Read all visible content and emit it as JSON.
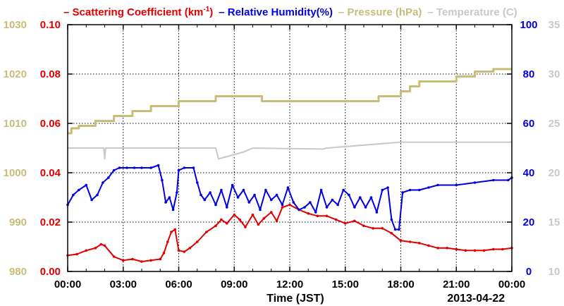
{
  "chart_data": {
    "type": "line",
    "legend": [
      {
        "key": "scattering",
        "dash": "–",
        "text": "Scattering Coefficient (km",
        "sup": "-1",
        "after": ")",
        "color": "#e00000"
      },
      {
        "key": "rh",
        "dash": "–",
        "text": "Relative Humidity(%)",
        "sup": "",
        "after": "",
        "color": "#0000e0"
      },
      {
        "key": "pressure",
        "dash": "–",
        "text": "Pressure (hPa)",
        "sup": "",
        "after": "",
        "color": "#c8bc78"
      },
      {
        "key": "temperature",
        "dash": "–",
        "text": "Temperature (",
        "sup": "",
        "after": "C)",
        "color": "#c8c8c8"
      }
    ],
    "xlabel": "Time (JST)",
    "date_label": "2013-04-22",
    "x_ticks": [
      "00:00",
      "03:00",
      "06:00",
      "09:00",
      "12:00",
      "15:00",
      "18:00",
      "21:00",
      "00:00"
    ],
    "xlim_hours": [
      0,
      24
    ],
    "grid": true,
    "axes": {
      "pressure": {
        "ylim": [
          980,
          1030
        ],
        "ticks": [
          "980",
          "990",
          "1000",
          "1010",
          "1020",
          "1030"
        ],
        "color": "#c8bc78"
      },
      "scattering": {
        "ylim": [
          0,
          0.1
        ],
        "ticks": [
          "0.00",
          "0.02",
          "0.04",
          "0.06",
          "0.08",
          "0.10"
        ],
        "color": "#e00000"
      },
      "rh": {
        "ylim": [
          0,
          100
        ],
        "ticks": [
          "0",
          "20",
          "40",
          "60",
          "80",
          "100"
        ],
        "color": "#0000e0"
      },
      "temperature": {
        "ylim": [
          10,
          35
        ],
        "ticks": [
          "10",
          "15",
          "20",
          "25",
          "30",
          "35"
        ],
        "color": "#c8c8c8"
      }
    },
    "series": [
      {
        "name": "Scattering Coefficient (km-1)",
        "axis": "scattering",
        "color": "#e00000",
        "x": [
          0,
          0.5,
          1.0,
          1.5,
          1.8,
          2.0,
          2.5,
          3.0,
          3.5,
          4.0,
          4.5,
          5.0,
          5.2,
          5.4,
          5.6,
          5.8,
          6.0,
          6.3,
          6.6,
          7.0,
          7.5,
          8.0,
          8.3,
          8.6,
          9.0,
          9.3,
          9.6,
          10.0,
          10.3,
          10.6,
          11.0,
          11.3,
          11.6,
          12.0,
          12.5,
          13.0,
          13.5,
          14.0,
          14.5,
          15.0,
          15.5,
          16.0,
          16.5,
          17.0,
          17.5,
          18.0,
          18.5,
          19.0,
          19.5,
          20.0,
          20.5,
          21.0,
          21.5,
          22.0,
          22.5,
          23.0,
          23.5,
          24.0
        ],
        "y": [
          0.0065,
          0.007,
          0.0085,
          0.0095,
          0.011,
          0.0105,
          0.006,
          0.0045,
          0.005,
          0.004,
          0.0045,
          0.005,
          0.0075,
          0.012,
          0.016,
          0.017,
          0.0085,
          0.008,
          0.0095,
          0.012,
          0.016,
          0.0185,
          0.021,
          0.0195,
          0.023,
          0.021,
          0.018,
          0.023,
          0.019,
          0.0215,
          0.024,
          0.0205,
          0.026,
          0.027,
          0.025,
          0.0235,
          0.0225,
          0.0225,
          0.021,
          0.0195,
          0.0205,
          0.0185,
          0.0175,
          0.0175,
          0.0155,
          0.0125,
          0.012,
          0.0115,
          0.0105,
          0.0095,
          0.0095,
          0.009,
          0.0085,
          0.0085,
          0.0085,
          0.009,
          0.009,
          0.0095
        ]
      },
      {
        "name": "Relative Humidity(%)",
        "axis": "rh",
        "color": "#0000e0",
        "x": [
          0,
          0.3,
          0.6,
          1.0,
          1.3,
          1.6,
          1.9,
          2.2,
          2.5,
          2.8,
          3.2,
          3.6,
          4.0,
          4.5,
          4.9,
          5.1,
          5.3,
          5.5,
          5.7,
          5.9,
          6.0,
          6.3,
          6.8,
          7.0,
          7.2,
          7.4,
          7.7,
          8.0,
          8.3,
          8.6,
          8.9,
          9.2,
          9.5,
          9.8,
          10.1,
          10.4,
          10.7,
          11.0,
          11.3,
          11.6,
          11.9,
          12.2,
          12.5,
          12.8,
          13.1,
          13.4,
          13.7,
          14.0,
          14.3,
          14.6,
          14.9,
          15.2,
          15.5,
          15.8,
          16.1,
          16.4,
          16.7,
          17.0,
          17.3,
          17.5,
          17.7,
          17.9,
          18.1,
          18.5,
          19.0,
          19.5,
          20.0,
          21.0,
          22.0,
          23.0,
          23.8,
          24.0
        ],
        "y": [
          27,
          31,
          33,
          35,
          29,
          31,
          36,
          38,
          41,
          42,
          42,
          42,
          42,
          42,
          43,
          37,
          28,
          30,
          25,
          32,
          41,
          42,
          42,
          36,
          31,
          29,
          32,
          27,
          33,
          26,
          35,
          30,
          33,
          28,
          31,
          25,
          33,
          29,
          31,
          27,
          34,
          28,
          25,
          26,
          28,
          24,
          33,
          26,
          29,
          27,
          33,
          31,
          26,
          30,
          26,
          30,
          24,
          33,
          34,
          21,
          17,
          17,
          32,
          33,
          33,
          34,
          35,
          35,
          36,
          37,
          37,
          38
        ]
      },
      {
        "name": "Pressure (hPa)",
        "axis": "pressure",
        "color": "#c8bc78",
        "step": true,
        "x": [
          0,
          0.2,
          0.6,
          1.5,
          2.5,
          3.5,
          4.5,
          6.0,
          8.0,
          10.5,
          14.0,
          16.8,
          18.0,
          18.5,
          19.0,
          20.0,
          21.0,
          22.0,
          23.0,
          24.0
        ],
        "y": [
          1008,
          1009,
          1009.5,
          1010.5,
          1011.5,
          1012.5,
          1013.5,
          1014.5,
          1015.5,
          1014.5,
          1014.5,
          1015.5,
          1016.5,
          1017.5,
          1018.5,
          1018.5,
          1019.5,
          1020.5,
          1021,
          1021
        ]
      },
      {
        "name": "Temperature (C)",
        "axis": "temperature",
        "color": "#c8c8c8",
        "x": [
          0,
          1.95,
          2.0,
          2.05,
          8.0,
          8.15,
          9.5,
          10.0,
          13.8,
          14.0,
          18.0,
          24.0
        ],
        "y": [
          22.5,
          22.5,
          21.4,
          22.5,
          22.5,
          21.4,
          22.1,
          22.5,
          22.4,
          22.5,
          23.1,
          23.1
        ]
      }
    ]
  }
}
